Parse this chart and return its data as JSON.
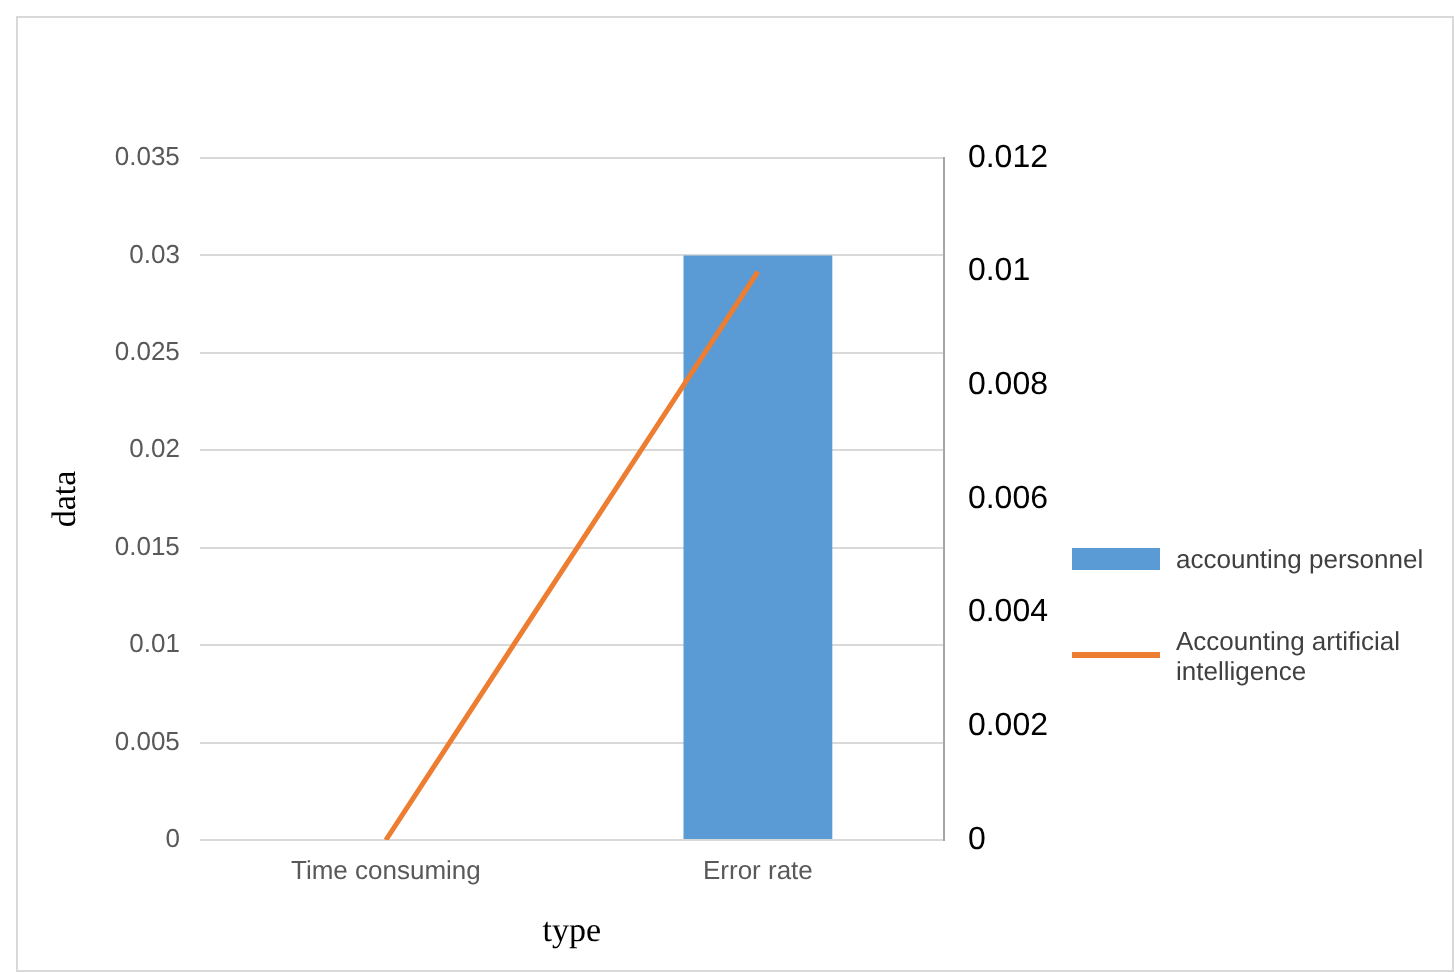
{
  "chart_data": {
    "type": "bar",
    "xlabel": "type",
    "ylabel": "data",
    "categories": [
      "Time consuming",
      "Error rate"
    ],
    "series": [
      {
        "name": "accounting personnel",
        "color": "#5b9bd5",
        "values": [
          0,
          0.03
        ]
      },
      {
        "name": "Accounting artificial intelligence",
        "type": "line",
        "axis": "y2",
        "color": "#ed7d31",
        "values": [
          0,
          0.01
        ],
        "marker": "none"
      }
    ],
    "ylim": [
      0,
      0.035
    ],
    "yticks": [
      0,
      0.005,
      0.01,
      0.015,
      0.02,
      0.025,
      0.03,
      0.035
    ],
    "y2lim": [
      0,
      0.012
    ],
    "y2ticks": [
      0,
      0.002,
      0.004,
      0.006,
      0.008,
      0.01,
      0.012
    ],
    "grid": "y",
    "legend": "right"
  }
}
